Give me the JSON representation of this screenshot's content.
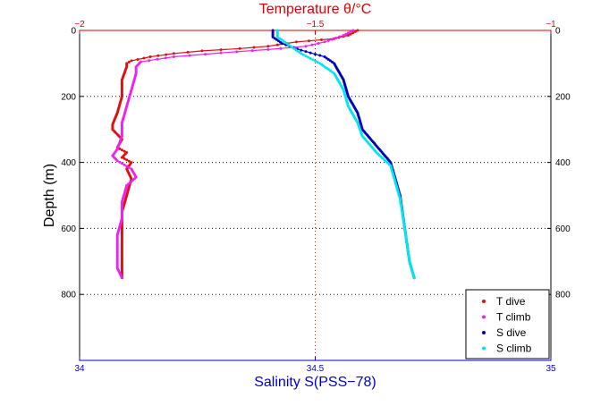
{
  "chart_data": {
    "type": "scatter",
    "title": "",
    "ylabel": "Depth (m)",
    "y_reversed": true,
    "ylim": [
      0,
      1000
    ],
    "yticks": [
      0,
      200,
      400,
      600,
      800
    ],
    "ytick_labels": [
      "0",
      "200",
      "400",
      "600",
      "800"
    ],
    "x_bottom": {
      "label": "Salinity S(PSS−78)",
      "lim": [
        34,
        35
      ],
      "ticks": [
        34,
        34.5,
        35
      ],
      "tick_labels": [
        "34",
        "34.5",
        "35"
      ],
      "color": "#0000cc"
    },
    "x_top": {
      "label": "Temperature θ/°C",
      "lim": [
        -2,
        -1
      ],
      "ticks": [
        -2,
        -1.5,
        -1
      ],
      "tick_labels": [
        "−2",
        "−1.5",
        "−1"
      ],
      "color": "#dd0000"
    },
    "grid": "dotted",
    "legend_position": "bottom-right",
    "series": [
      {
        "name": "T dive",
        "axis": "top",
        "color": "#dd1111",
        "marker": "dot",
        "points": [
          [
            -1.41,
            0
          ],
          [
            -1.43,
            15
          ],
          [
            -1.46,
            25
          ],
          [
            -1.54,
            35
          ],
          [
            -1.6,
            48
          ],
          [
            -1.66,
            55
          ],
          [
            -1.74,
            62
          ],
          [
            -1.8,
            70
          ],
          [
            -1.85,
            80
          ],
          [
            -1.89,
            92
          ],
          [
            -1.9,
            100
          ],
          [
            -1.9,
            110
          ],
          [
            -1.91,
            150
          ],
          [
            -1.91,
            200
          ],
          [
            -1.92,
            250
          ],
          [
            -1.93,
            285
          ],
          [
            -1.93,
            300
          ],
          [
            -1.91,
            330
          ],
          [
            -1.92,
            355
          ],
          [
            -1.9,
            370
          ],
          [
            -1.91,
            385
          ],
          [
            -1.89,
            400
          ],
          [
            -1.9,
            420
          ],
          [
            -1.89,
            450
          ],
          [
            -1.9,
            500
          ],
          [
            -1.91,
            550
          ],
          [
            -1.91,
            600
          ],
          [
            -1.91,
            650
          ],
          [
            -1.91,
            700
          ],
          [
            -1.91,
            750
          ]
        ]
      },
      {
        "name": "T climb",
        "axis": "top",
        "color": "#ee22ee",
        "marker": "dot",
        "points": [
          [
            -1.42,
            0
          ],
          [
            -1.44,
            15
          ],
          [
            -1.48,
            35
          ],
          [
            -1.52,
            48
          ],
          [
            -1.6,
            58
          ],
          [
            -1.7,
            68
          ],
          [
            -1.8,
            80
          ],
          [
            -1.87,
            95
          ],
          [
            -1.88,
            110
          ],
          [
            -1.88,
            130
          ],
          [
            -1.89,
            180
          ],
          [
            -1.9,
            230
          ],
          [
            -1.91,
            280
          ],
          [
            -1.91,
            320
          ],
          [
            -1.92,
            360
          ],
          [
            -1.93,
            380
          ],
          [
            -1.92,
            395
          ],
          [
            -1.89,
            420
          ],
          [
            -1.88,
            445
          ],
          [
            -1.9,
            470
          ],
          [
            -1.91,
            520
          ],
          [
            -1.91,
            570
          ],
          [
            -1.92,
            620
          ],
          [
            -1.92,
            670
          ],
          [
            -1.92,
            720
          ],
          [
            -1.91,
            750
          ]
        ]
      },
      {
        "name": "S dive",
        "axis": "bottom",
        "color": "#0000bb",
        "marker": "dot",
        "points": [
          [
            34.41,
            0
          ],
          [
            34.41,
            20
          ],
          [
            34.43,
            40
          ],
          [
            34.47,
            60
          ],
          [
            34.52,
            80
          ],
          [
            34.54,
            100
          ],
          [
            34.56,
            150
          ],
          [
            34.57,
            200
          ],
          [
            34.59,
            250
          ],
          [
            34.6,
            300
          ],
          [
            34.63,
            350
          ],
          [
            34.66,
            400
          ],
          [
            34.67,
            450
          ],
          [
            34.68,
            500
          ],
          [
            34.69,
            600
          ],
          [
            34.7,
            700
          ],
          [
            34.71,
            750
          ]
        ]
      },
      {
        "name": "S climb",
        "axis": "bottom",
        "color": "#00e5ee",
        "marker": "dot",
        "points": [
          [
            34.42,
            0
          ],
          [
            34.42,
            20
          ],
          [
            34.44,
            40
          ],
          [
            34.47,
            70
          ],
          [
            34.51,
            100
          ],
          [
            34.54,
            130
          ],
          [
            34.56,
            180
          ],
          [
            34.57,
            230
          ],
          [
            34.59,
            280
          ],
          [
            34.6,
            320
          ],
          [
            34.63,
            370
          ],
          [
            34.66,
            410
          ],
          [
            34.67,
            460
          ],
          [
            34.68,
            510
          ],
          [
            34.69,
            600
          ],
          [
            34.7,
            700
          ],
          [
            34.71,
            750
          ]
        ]
      }
    ]
  }
}
